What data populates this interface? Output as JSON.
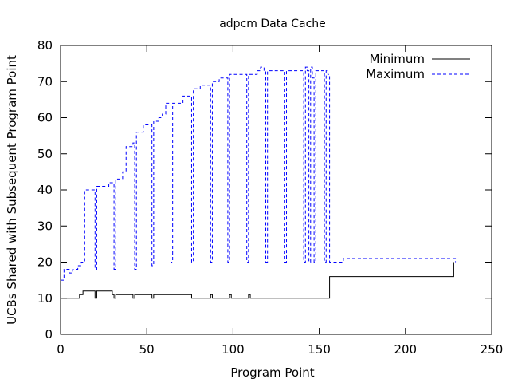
{
  "chart_data": {
    "type": "line",
    "title": "adpcm Data Cache",
    "xlabel": "Program Point",
    "ylabel": "UCBs Shared with Subsequent Program Point",
    "xlim": [
      0,
      250
    ],
    "ylim": [
      0,
      80
    ],
    "xticks": [
      0,
      50,
      100,
      150,
      200,
      250
    ],
    "yticks": [
      0,
      10,
      20,
      30,
      40,
      50,
      60,
      70,
      80
    ],
    "grid": false,
    "legend_position": "top-right",
    "series": [
      {
        "name": "Minimum",
        "color": "#000000",
        "style": "solid",
        "points": [
          [
            0,
            10
          ],
          [
            9,
            10
          ],
          [
            11,
            11
          ],
          [
            13,
            12
          ],
          [
            19,
            12
          ],
          [
            20,
            10
          ],
          [
            21,
            12
          ],
          [
            28,
            12
          ],
          [
            30,
            11
          ],
          [
            31,
            10
          ],
          [
            32,
            11
          ],
          [
            40,
            11
          ],
          [
            42,
            10
          ],
          [
            43,
            11
          ],
          [
            52,
            11
          ],
          [
            53,
            10
          ],
          [
            54,
            11
          ],
          [
            75,
            11
          ],
          [
            76,
            10
          ],
          [
            86,
            10
          ],
          [
            87,
            11
          ],
          [
            88,
            10
          ],
          [
            97,
            10
          ],
          [
            98,
            11
          ],
          [
            99,
            10
          ],
          [
            108,
            10
          ],
          [
            109,
            11
          ],
          [
            110,
            10
          ],
          [
            155,
            10
          ],
          [
            156,
            16
          ],
          [
            227,
            16
          ],
          [
            228,
            20
          ]
        ]
      },
      {
        "name": "Maximum",
        "color": "#0000ff",
        "style": "dashed",
        "points": [
          [
            0,
            15
          ],
          [
            2,
            18
          ],
          [
            5,
            17
          ],
          [
            7,
            18
          ],
          [
            10,
            19
          ],
          [
            12,
            20
          ],
          [
            14,
            40
          ],
          [
            19,
            40
          ],
          [
            20,
            18
          ],
          [
            21,
            41
          ],
          [
            23,
            41
          ],
          [
            28,
            42
          ],
          [
            30,
            42
          ],
          [
            31,
            18
          ],
          [
            32,
            43
          ],
          [
            34,
            43
          ],
          [
            36,
            45
          ],
          [
            38,
            52
          ],
          [
            42,
            53
          ],
          [
            43,
            18
          ],
          [
            44,
            56
          ],
          [
            48,
            58
          ],
          [
            52,
            58
          ],
          [
            53,
            19
          ],
          [
            54,
            59
          ],
          [
            57,
            60
          ],
          [
            59,
            61
          ],
          [
            61,
            64
          ],
          [
            63,
            64
          ],
          [
            64,
            20
          ],
          [
            65,
            64
          ],
          [
            68,
            64
          ],
          [
            71,
            66
          ],
          [
            75,
            66
          ],
          [
            76,
            20
          ],
          [
            77,
            68
          ],
          [
            79,
            68
          ],
          [
            81,
            69
          ],
          [
            86,
            69
          ],
          [
            87,
            20
          ],
          [
            88,
            70
          ],
          [
            90,
            70
          ],
          [
            92,
            71
          ],
          [
            96,
            71
          ],
          [
            97,
            20
          ],
          [
            98,
            72
          ],
          [
            107,
            72
          ],
          [
            108,
            20
          ],
          [
            109,
            72
          ],
          [
            112,
            72
          ],
          [
            114,
            73
          ],
          [
            116,
            74
          ],
          [
            118,
            73
          ],
          [
            119,
            20
          ],
          [
            120,
            73
          ],
          [
            129,
            73
          ],
          [
            130,
            20
          ],
          [
            131,
            73
          ],
          [
            140,
            73
          ],
          [
            141,
            20
          ],
          [
            142,
            74
          ],
          [
            143,
            73
          ],
          [
            144,
            20
          ],
          [
            145,
            74
          ],
          [
            146,
            71
          ],
          [
            147,
            20
          ],
          [
            148,
            73
          ],
          [
            152,
            73
          ],
          [
            153,
            20
          ],
          [
            154,
            73
          ],
          [
            155,
            72
          ],
          [
            156,
            20
          ],
          [
            157,
            20
          ],
          [
            162,
            20
          ],
          [
            164,
            21
          ],
          [
            227,
            21
          ],
          [
            229,
            20
          ]
        ]
      }
    ]
  }
}
